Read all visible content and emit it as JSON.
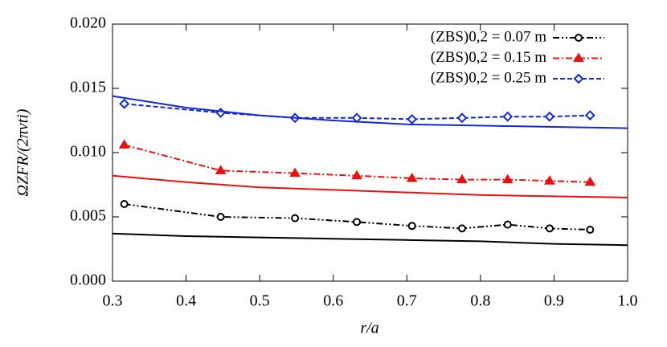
{
  "chart_data": {
    "type": "line",
    "xlabel": "r/a",
    "ylabel": "ΩZFR/(2πvti)",
    "xlim": [
      0.3,
      1.0
    ],
    "ylim": [
      0,
      0.02
    ],
    "xticks": [
      0.3,
      0.4,
      0.5,
      0.6,
      0.7,
      0.8,
      0.9,
      {
        "value": 1,
        "label": "1.0"
      }
    ],
    "yticks": [
      {
        "value": 0,
        "label": "0.000"
      },
      0.005,
      {
        "value": 0.01,
        "label": "0.010"
      },
      0.015,
      {
        "value": 0.02,
        "label": "0.020"
      }
    ],
    "legend": "upper right",
    "series": [
      {
        "name": "(ZBS)0,2 = 0.07 m",
        "color": "#000000",
        "marker": "circle",
        "style": "dashdotdot",
        "x": [
          0.316,
          0.447,
          0.548,
          0.632,
          0.707,
          0.775,
          0.837,
          0.894,
          0.949
        ],
        "values": [
          0.006,
          0.005,
          0.0049,
          0.0046,
          0.0043,
          0.0041,
          0.0044,
          0.0041,
          0.004
        ]
      },
      {
        "name": "(ZBS)0,2 = 0.15 m",
        "color": "#e8110f",
        "marker": "triangle",
        "style": "dashdot",
        "x": [
          0.316,
          0.447,
          0.548,
          0.632,
          0.707,
          0.775,
          0.837,
          0.894,
          0.949
        ],
        "values": [
          0.0106,
          0.0086,
          0.0084,
          0.0082,
          0.008,
          0.0079,
          0.0079,
          0.0078,
          0.0077
        ]
      },
      {
        "name": "(ZBS)0,2 = 0.25 m",
        "color": "#1428d8",
        "marker": "diamond",
        "style": "dashed",
        "x": [
          0.316,
          0.447,
          0.548,
          0.632,
          0.707,
          0.775,
          0.837,
          0.894,
          0.949
        ],
        "values": [
          0.0138,
          0.0131,
          0.0127,
          0.0127,
          0.0126,
          0.0127,
          0.0128,
          0.0128,
          0.0129
        ]
      },
      {
        "color": "#1428d8",
        "style": "solid",
        "x": [
          0.3,
          0.4,
          0.5,
          0.6,
          0.7,
          0.8,
          0.9,
          1.0
        ],
        "values": [
          0.0144,
          0.0135,
          0.0129,
          0.0125,
          0.0122,
          0.0121,
          0.012,
          0.0119
        ]
      },
      {
        "color": "#e8110f",
        "style": "solid",
        "x": [
          0.3,
          0.4,
          0.5,
          0.6,
          0.7,
          0.8,
          0.9,
          1.0
        ],
        "values": [
          0.0082,
          0.0077,
          0.0073,
          0.0071,
          0.0069,
          0.0067,
          0.0066,
          0.0065
        ]
      },
      {
        "color": "#000000",
        "style": "solid",
        "x": [
          0.3,
          0.4,
          0.5,
          0.6,
          0.7,
          0.8,
          0.9,
          1.0
        ],
        "values": [
          0.0037,
          0.0035,
          0.0034,
          0.0033,
          0.0032,
          0.0031,
          0.0029,
          0.0028
        ]
      }
    ]
  }
}
